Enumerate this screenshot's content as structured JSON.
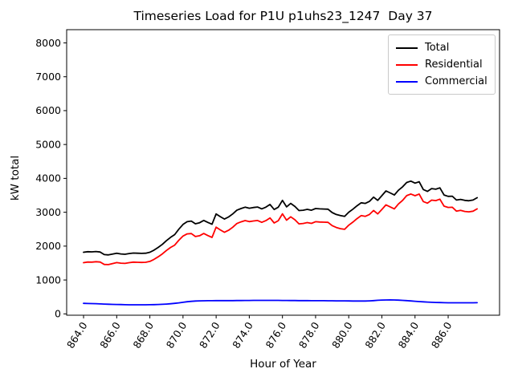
{
  "figure": {
    "background": "#ffffff"
  },
  "chart_data": {
    "type": "line",
    "title": "Timeseries Load for P1U p1uhs23_1247  Day 37",
    "xlabel": "Hour of Year",
    "ylabel": "kW total",
    "xlim": [
      862.98,
      889.1
    ],
    "ylim": [
      -40,
      8390
    ],
    "grid": false,
    "legend_position": "upper right",
    "x_ticks": [
      864,
      866,
      868,
      870,
      872,
      874,
      876,
      878,
      880,
      882,
      884,
      886
    ],
    "x_tick_labels": [
      "864.0",
      "866.0",
      "868.0",
      "870.0",
      "872.0",
      "874.0",
      "876.0",
      "878.0",
      "880.0",
      "882.0",
      "884.0",
      "886.0"
    ],
    "y_ticks": [
      0,
      1000,
      2000,
      3000,
      4000,
      5000,
      6000,
      7000,
      8000
    ],
    "y_tick_labels": [
      "0",
      "1000",
      "2000",
      "3000",
      "4000",
      "5000",
      "6000",
      "7000",
      "8000"
    ],
    "x": [
      864.0,
      864.25,
      864.5,
      864.75,
      865.0,
      865.25,
      865.5,
      865.75,
      866.0,
      866.25,
      866.5,
      866.75,
      867.0,
      867.25,
      867.5,
      867.75,
      868.0,
      868.25,
      868.5,
      868.75,
      869.0,
      869.25,
      869.5,
      869.75,
      870.0,
      870.25,
      870.5,
      870.75,
      871.0,
      871.25,
      871.5,
      871.75,
      872.0,
      872.25,
      872.5,
      872.75,
      873.0,
      873.25,
      873.5,
      873.75,
      874.0,
      874.25,
      874.5,
      874.75,
      875.0,
      875.25,
      875.5,
      875.75,
      876.0,
      876.25,
      876.5,
      876.75,
      877.0,
      877.25,
      877.5,
      877.75,
      878.0,
      878.25,
      878.5,
      878.75,
      879.0,
      879.25,
      879.5,
      879.75,
      880.0,
      880.25,
      880.5,
      880.75,
      881.0,
      881.25,
      881.5,
      881.75,
      882.0,
      882.25,
      882.5,
      882.75,
      883.0,
      883.25,
      883.5,
      883.75,
      884.0,
      884.25,
      884.5,
      884.75,
      885.0,
      885.25,
      885.5,
      885.75,
      886.0,
      886.25,
      886.5,
      886.75,
      887.0,
      887.25,
      887.5,
      887.75
    ],
    "series": [
      {
        "name": "Total",
        "color": "#000000",
        "values": [
          1820,
          1835,
          1830,
          1840,
          1825,
          1750,
          1740,
          1765,
          1790,
          1770,
          1760,
          1780,
          1795,
          1790,
          1785,
          1790,
          1820,
          1880,
          1960,
          2050,
          2160,
          2260,
          2340,
          2500,
          2640,
          2720,
          2740,
          2660,
          2690,
          2760,
          2700,
          2645,
          2950,
          2870,
          2800,
          2860,
          2950,
          3060,
          3110,
          3150,
          3120,
          3140,
          3155,
          3100,
          3150,
          3230,
          3080,
          3150,
          3350,
          3160,
          3260,
          3170,
          3050,
          3060,
          3085,
          3060,
          3110,
          3100,
          3095,
          3090,
          2990,
          2935,
          2900,
          2880,
          3000,
          3090,
          3190,
          3280,
          3260,
          3320,
          3445,
          3350,
          3490,
          3630,
          3570,
          3510,
          3650,
          3750,
          3880,
          3920,
          3860,
          3900,
          3670,
          3615,
          3700,
          3680,
          3720,
          3510,
          3470,
          3475,
          3360,
          3380,
          3350,
          3340,
          3360,
          3430
        ]
      },
      {
        "name": "Residential",
        "color": "#ff0000",
        "values": [
          1510,
          1529,
          1527,
          1540,
          1530,
          1460,
          1455,
          1485,
          1513,
          1496,
          1489,
          1511,
          1527,
          1523,
          1518,
          1522,
          1550,
          1607,
          1683,
          1768,
          1871,
          1962,
          2030,
          2175,
          2298,
          2362,
          2370,
          2282,
          2307,
          2374,
          2312,
          2256,
          2560,
          2479,
          2409,
          2468,
          2558,
          2667,
          2716,
          2755,
          2724,
          2743,
          2757,
          2702,
          2752,
          2832,
          2683,
          2753,
          2954,
          2765,
          2866,
          2777,
          2658,
          2669,
          2695,
          2671,
          2721,
          2712,
          2707,
          2703,
          2604,
          2550,
          2516,
          2497,
          2618,
          2710,
          2811,
          2902,
          2880,
          2935,
          3053,
          2950,
          3083,
          3219,
          3158,
          3100,
          3245,
          3352,
          3490,
          3539,
          3488,
          3537,
          3315,
          3267,
          3358,
          3343,
          3387,
          3180,
          3142,
          3148,
          3034,
          3054,
          3024,
          3013,
          3032,
          3100
        ]
      },
      {
        "name": "Commercial",
        "color": "#0000ff",
        "values": [
          310,
          306,
          303,
          300,
          295,
          290,
          285,
          280,
          277,
          274,
          271,
          269,
          268,
          267,
          267,
          268,
          270,
          273,
          277,
          282,
          289,
          298,
          310,
          325,
          342,
          358,
          370,
          378,
          383,
          386,
          388,
          389,
          390,
          391,
          391,
          392,
          392,
          393,
          394,
          395,
          396,
          397,
          398,
          398,
          398,
          398,
          397,
          397,
          396,
          395,
          394,
          393,
          392,
          391,
          390,
          389,
          389,
          388,
          388,
          387,
          386,
          385,
          384,
          383,
          382,
          380,
          379,
          378,
          380,
          385,
          392,
          400,
          407,
          411,
          412,
          410,
          405,
          398,
          390,
          381,
          372,
          363,
          355,
          348,
          342,
          337,
          333,
          330,
          328,
          327,
          326,
          326,
          326,
          327,
          328,
          330
        ]
      }
    ]
  }
}
